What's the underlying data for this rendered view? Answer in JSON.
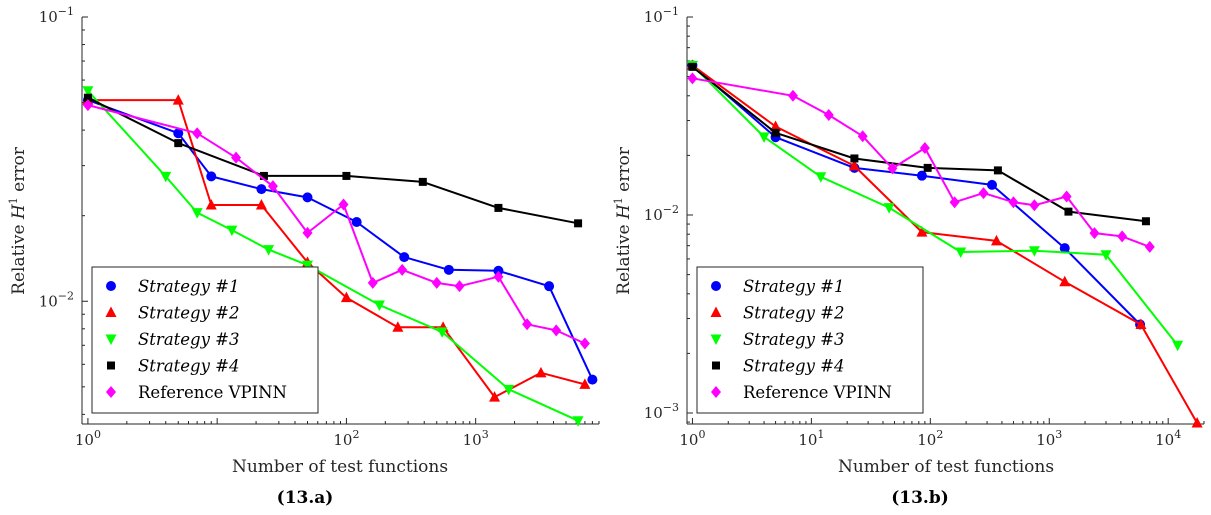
{
  "chart_data": [
    {
      "type": "line",
      "panel_label": "(13.a)",
      "xlabel": "Number of test functions",
      "ylabel_main": "Relative ",
      "ylabel_symbol": "H",
      "ylabel_sup": "1",
      "ylabel_tail": " error",
      "x_scale": "log",
      "y_scale": "log",
      "xlim": [
        0.9,
        9000
      ],
      "ylim": [
        0.0037,
        0.1
      ],
      "x_ticks": [
        {
          "value": 1,
          "base": "10",
          "exp": "0"
        },
        {
          "value": 100,
          "base": "10",
          "exp": "2"
        },
        {
          "value": 1000,
          "base": "10",
          "exp": "3"
        }
      ],
      "y_ticks": [
        {
          "value": 0.1,
          "base": "10",
          "exp": "−1"
        },
        {
          "value": 0.01,
          "base": "10",
          "exp": "−2"
        }
      ],
      "legend_position": "bottom-left",
      "series": [
        {
          "name": "Strategy #1",
          "italic": true,
          "color": "#0000ff",
          "marker": "circle",
          "points": [
            [
              1,
              0.051
            ],
            [
              5,
              0.039
            ],
            [
              9,
              0.0275
            ],
            [
              22,
              0.0248
            ],
            [
              50,
              0.0232
            ],
            [
              120,
              0.019
            ],
            [
              280,
              0.0143
            ],
            [
              620,
              0.0129
            ],
            [
              1500,
              0.0128
            ],
            [
              3700,
              0.0113
            ],
            [
              8000,
              0.0053
            ]
          ]
        },
        {
          "name": "Strategy #2",
          "italic": true,
          "color": "#ff0000",
          "marker": "triangle-up",
          "points": [
            [
              1,
              0.051
            ],
            [
              5,
              0.051
            ],
            [
              9,
              0.0218
            ],
            [
              22,
              0.0218
            ],
            [
              50,
              0.0137
            ],
            [
              100,
              0.0103
            ],
            [
              250,
              0.0081
            ],
            [
              560,
              0.0081
            ],
            [
              1400,
              0.0046
            ],
            [
              3200,
              0.0056
            ],
            [
              7000,
              0.0051
            ]
          ]
        },
        {
          "name": "Strategy #3",
          "italic": true,
          "color": "#00ff00",
          "marker": "triangle-down",
          "points": [
            [
              1,
              0.055
            ],
            [
              4,
              0.0275
            ],
            [
              7,
              0.0205
            ],
            [
              13,
              0.0178
            ],
            [
              25,
              0.0152
            ],
            [
              50,
              0.0134
            ],
            [
              180,
              0.0097
            ],
            [
              550,
              0.0078
            ],
            [
              1800,
              0.0049
            ],
            [
              6200,
              0.0038
            ]
          ]
        },
        {
          "name": "Strategy #4",
          "italic": true,
          "color": "#000000",
          "marker": "square",
          "points": [
            [
              1,
              0.052
            ],
            [
              5,
              0.036
            ],
            [
              23,
              0.0276
            ],
            [
              100,
              0.0276
            ],
            [
              390,
              0.0263
            ],
            [
              1500,
              0.0213
            ],
            [
              6200,
              0.0188
            ]
          ]
        },
        {
          "name": "Reference VPINN",
          "italic": false,
          "color": "#ff00ff",
          "marker": "diamond",
          "points": [
            [
              1,
              0.049
            ],
            [
              7,
              0.039
            ],
            [
              14,
              0.032
            ],
            [
              27,
              0.0254
            ],
            [
              50,
              0.0174
            ],
            [
              95,
              0.0219
            ],
            [
              160,
              0.0116
            ],
            [
              270,
              0.0129
            ],
            [
              500,
              0.0116
            ],
            [
              750,
              0.0113
            ],
            [
              1500,
              0.0122
            ],
            [
              2500,
              0.0083
            ],
            [
              4200,
              0.0079
            ],
            [
              7000,
              0.0071
            ]
          ]
        }
      ]
    },
    {
      "type": "line",
      "panel_label": "(13.b)",
      "xlabel": "Number of test functions",
      "ylabel_main": "Relative ",
      "ylabel_symbol": "H",
      "ylabel_sup": "1",
      "ylabel_tail": " error",
      "x_scale": "log",
      "y_scale": "log",
      "xlim": [
        0.9,
        20000
      ],
      "ylim": [
        0.00088,
        0.1
      ],
      "x_ticks": [
        {
          "value": 1,
          "base": "10",
          "exp": "0"
        },
        {
          "value": 10,
          "base": "10",
          "exp": "1"
        },
        {
          "value": 100,
          "base": "10",
          "exp": "2"
        },
        {
          "value": 1000,
          "base": "10",
          "exp": "3"
        },
        {
          "value": 10000,
          "base": "10",
          "exp": "4"
        }
      ],
      "y_ticks": [
        {
          "value": 0.1,
          "base": "10",
          "exp": "−1"
        },
        {
          "value": 0.01,
          "base": "10",
          "exp": "−2"
        },
        {
          "value": 0.001,
          "base": "10",
          "exp": "−3"
        }
      ],
      "legend_position": "bottom-left",
      "series": [
        {
          "name": "Strategy #1",
          "italic": true,
          "color": "#0000ff",
          "marker": "circle",
          "points": [
            [
              1,
              0.057
            ],
            [
              5,
              0.0247
            ],
            [
              23,
              0.0173
            ],
            [
              85,
              0.0158
            ],
            [
              330,
              0.0142
            ],
            [
              1350,
              0.0068
            ],
            [
              5800,
              0.0028
            ]
          ]
        },
        {
          "name": "Strategy #2",
          "italic": true,
          "color": "#ff0000",
          "marker": "triangle-up",
          "points": [
            [
              1,
              0.057
            ],
            [
              5,
              0.028
            ],
            [
              23,
              0.0177
            ],
            [
              85,
              0.0082
            ],
            [
              360,
              0.0074
            ],
            [
              1350,
              0.0046
            ],
            [
              5900,
              0.0028
            ],
            [
              17500,
              0.00089
            ]
          ]
        },
        {
          "name": "Strategy #3",
          "italic": true,
          "color": "#00ff00",
          "marker": "triangle-down",
          "points": [
            [
              1,
              0.057
            ],
            [
              4,
              0.0248
            ],
            [
              12,
              0.0156
            ],
            [
              45,
              0.0109
            ],
            [
              180,
              0.0065
            ],
            [
              750,
              0.0066
            ],
            [
              3000,
              0.0063
            ],
            [
              12000,
              0.0022
            ]
          ]
        },
        {
          "name": "Strategy #4",
          "italic": true,
          "color": "#000000",
          "marker": "square",
          "points": [
            [
              1,
              0.056
            ],
            [
              5,
              0.026
            ],
            [
              23,
              0.0193
            ],
            [
              95,
              0.0173
            ],
            [
              370,
              0.0168
            ],
            [
              1450,
              0.0104
            ],
            [
              6500,
              0.0093
            ]
          ]
        },
        {
          "name": "Reference VPINN",
          "italic": false,
          "color": "#ff00ff",
          "marker": "diamond",
          "points": [
            [
              1,
              0.049
            ],
            [
              7,
              0.04
            ],
            [
              14,
              0.032
            ],
            [
              27,
              0.025
            ],
            [
              48,
              0.0172
            ],
            [
              90,
              0.0218
            ],
            [
              160,
              0.0116
            ],
            [
              280,
              0.0129
            ],
            [
              500,
              0.0116
            ],
            [
              750,
              0.0112
            ],
            [
              1400,
              0.0124
            ],
            [
              2400,
              0.0081
            ],
            [
              4100,
              0.0078
            ],
            [
              7000,
              0.0069
            ]
          ]
        }
      ]
    }
  ]
}
